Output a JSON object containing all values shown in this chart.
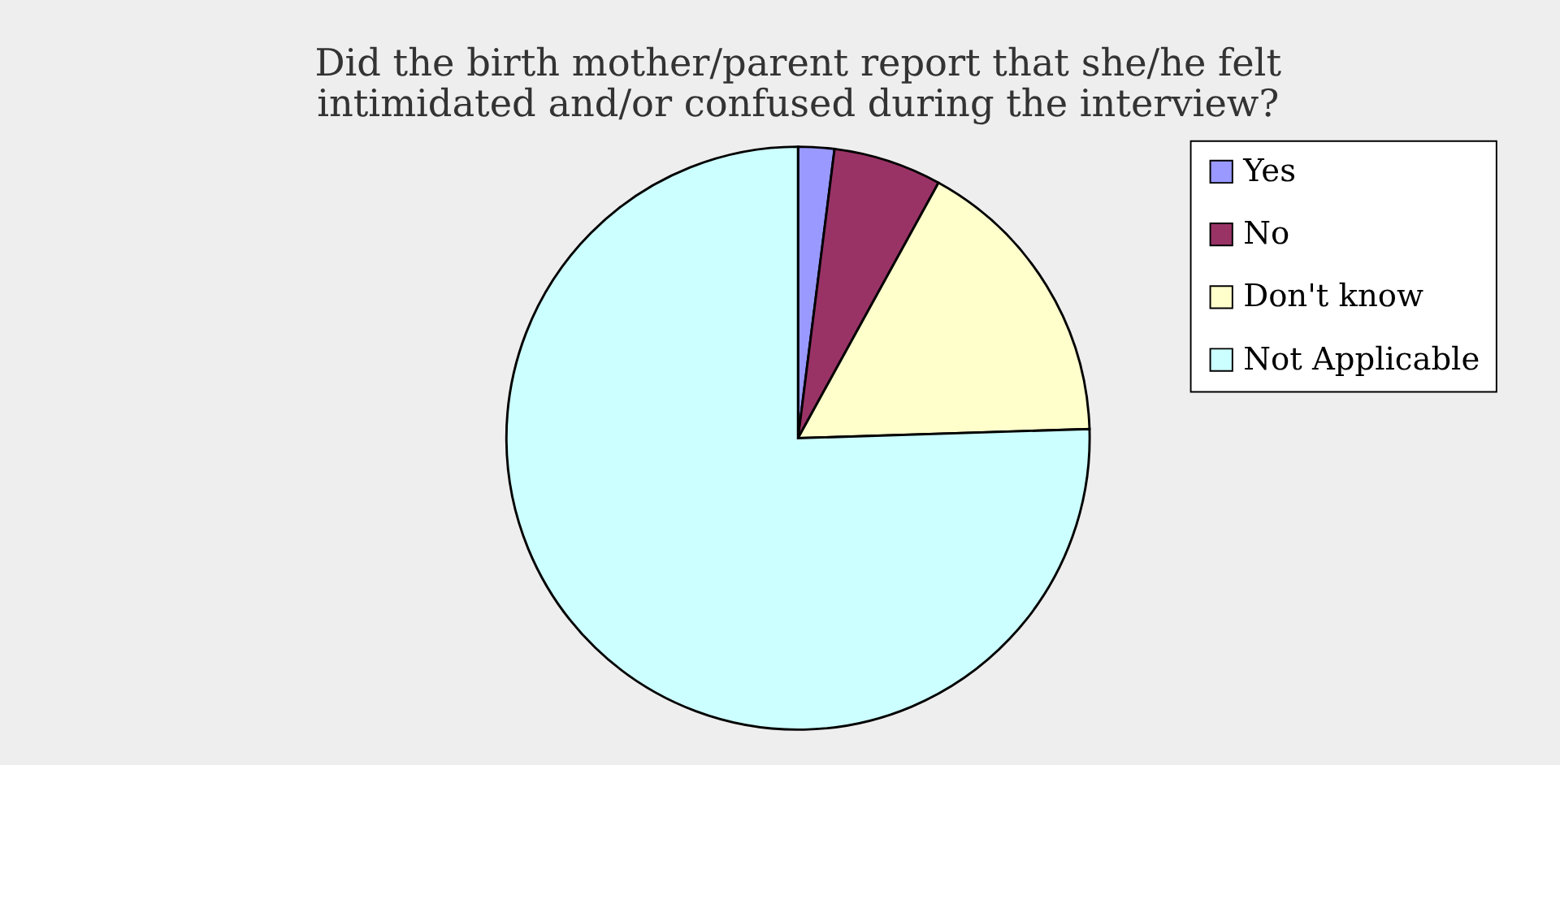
{
  "chart_data": {
    "type": "pie",
    "title": "Did the birth mother/parent report that she/he felt intimidated and/or confused during the interview?",
    "categories": [
      "Yes",
      "No",
      "Don't know",
      "Not Applicable"
    ],
    "values": [
      2,
      6,
      16.5,
      75.5
    ],
    "colors": [
      "#9999ff",
      "#993366",
      "#ffffcc",
      "#ccffff"
    ],
    "legend": "right"
  }
}
